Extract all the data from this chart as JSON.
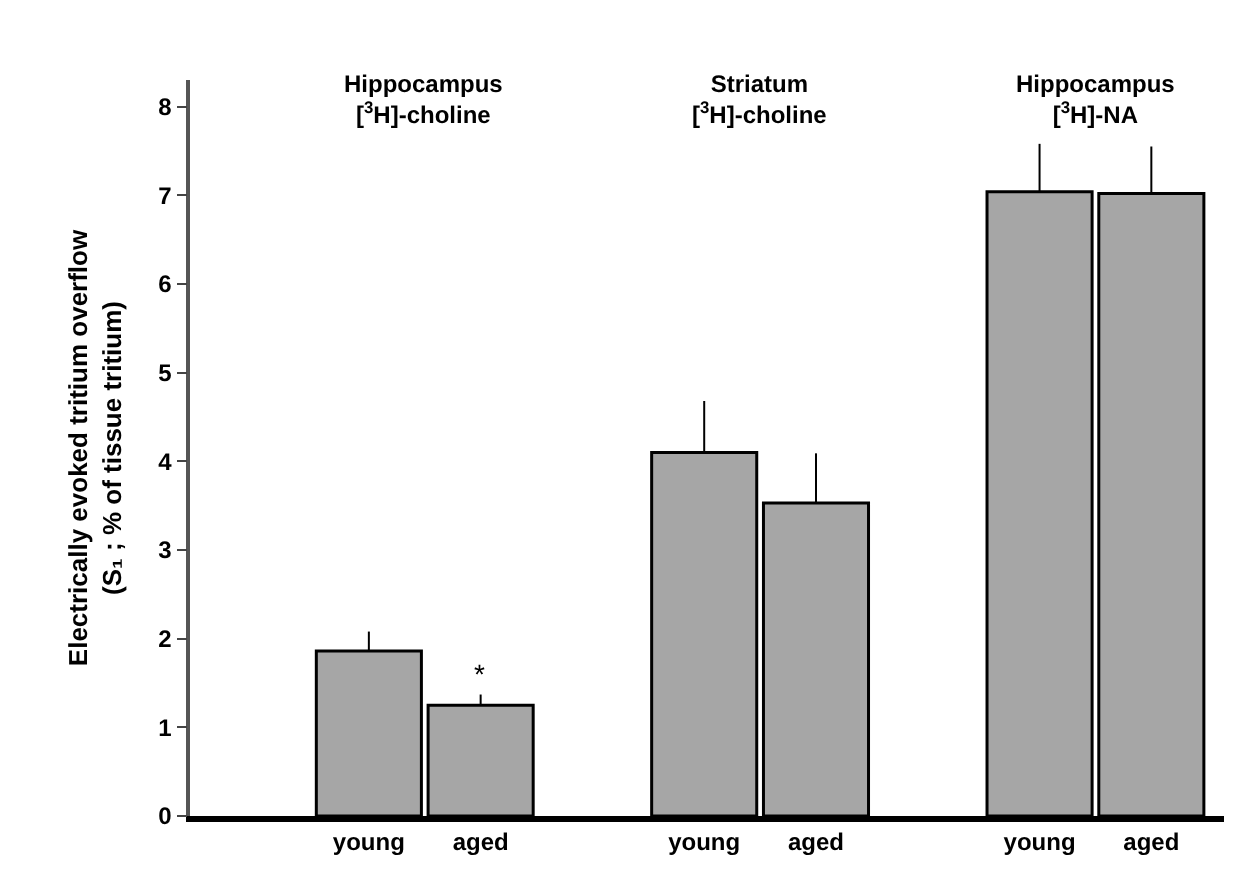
{
  "chart_data": {
    "type": "bar",
    "categories": [
      null,
      "young",
      "aged",
      null,
      "young",
      "aged",
      null,
      "young",
      "aged"
    ],
    "values": [
      null,
      1.86,
      1.25,
      null,
      4.1,
      3.53,
      null,
      7.04,
      7.02
    ],
    "errors": [
      null,
      [
        1.86,
        2.08
      ],
      [
        1.25,
        1.37
      ],
      null,
      [
        4.1,
        4.68
      ],
      [
        3.53,
        4.09
      ],
      null,
      [
        7.04,
        7.58
      ],
      [
        7.02,
        7.55
      ]
    ],
    "color": "#a6a6a6",
    "ylabel": "Electrically evoked tritium overflow\n(S₁ ; % of tissue tritium)",
    "ylim": [
      0,
      8.3
    ],
    "yticks": [
      0,
      1,
      2,
      3,
      4,
      5,
      6,
      7,
      8
    ],
    "annotations": [
      "Hippocampus\n[$^{3}$H]-choline",
      "Striatum\n[$^{3}$H]-choline",
      "Hippocampus\n[$^{3}$H]-NA",
      {
        "text": "*",
        "x": "aged",
        "y": 1.37
      }
    ],
    "marker": "none"
  }
}
